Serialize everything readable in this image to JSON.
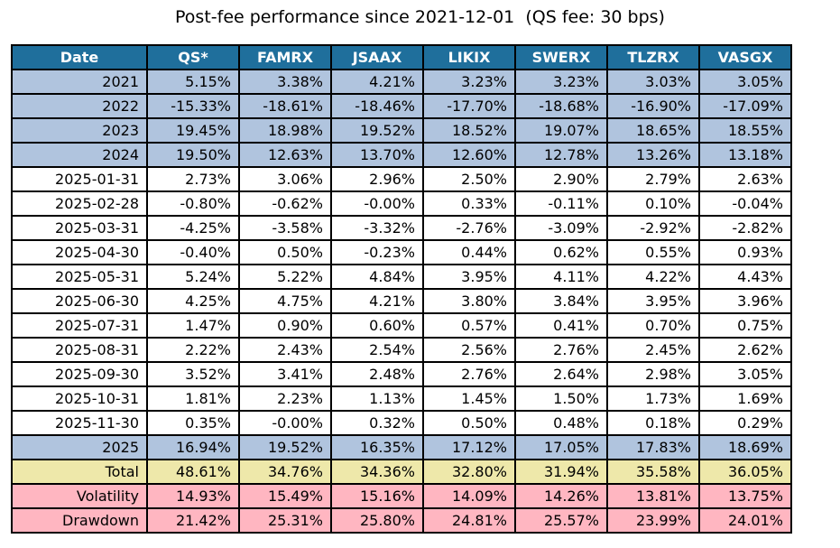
{
  "colors": {
    "header_bg": "#1F6F9C",
    "header_text": "#FFFFFF",
    "year_row_bg": "#B0C4DE",
    "month_row_bg": "#FFFFFF",
    "total_row_bg": "#EEE8AA",
    "risk_row_bg": "#FFB6C1",
    "border": "#000000",
    "text": "#000000",
    "background": "#FFFFFF"
  },
  "chart_data": {
    "type": "table",
    "title": "Post-fee performance since 2021-12-01  (QS fee: 30 bps)",
    "columns": [
      "Date",
      "QS*",
      "FAMRX",
      "JSAAX",
      "LIKIX",
      "SWERX",
      "TLZRX",
      "VASGX"
    ],
    "rows": [
      {
        "label": "2021",
        "row_type": "year",
        "values": [
          "5.15%",
          "3.38%",
          "4.21%",
          "3.23%",
          "3.23%",
          "3.03%",
          "3.05%"
        ]
      },
      {
        "label": "2022",
        "row_type": "year",
        "values": [
          "-15.33%",
          "-18.61%",
          "-18.46%",
          "-17.70%",
          "-18.68%",
          "-16.90%",
          "-17.09%"
        ]
      },
      {
        "label": "2023",
        "row_type": "year",
        "values": [
          "19.45%",
          "18.98%",
          "19.52%",
          "18.52%",
          "19.07%",
          "18.65%",
          "18.55%"
        ]
      },
      {
        "label": "2024",
        "row_type": "year",
        "values": [
          "19.50%",
          "12.63%",
          "13.70%",
          "12.60%",
          "12.78%",
          "13.26%",
          "13.18%"
        ]
      },
      {
        "label": "2025-01-31",
        "row_type": "month",
        "values": [
          "2.73%",
          "3.06%",
          "2.96%",
          "2.50%",
          "2.90%",
          "2.79%",
          "2.63%"
        ]
      },
      {
        "label": "2025-02-28",
        "row_type": "month",
        "values": [
          "-0.80%",
          "-0.62%",
          "-0.00%",
          "0.33%",
          "-0.11%",
          "0.10%",
          "-0.04%"
        ]
      },
      {
        "label": "2025-03-31",
        "row_type": "month",
        "values": [
          "-4.25%",
          "-3.58%",
          "-3.32%",
          "-2.76%",
          "-3.09%",
          "-2.92%",
          "-2.82%"
        ]
      },
      {
        "label": "2025-04-30",
        "row_type": "month",
        "values": [
          "-0.40%",
          "0.50%",
          "-0.23%",
          "0.44%",
          "0.62%",
          "0.55%",
          "0.93%"
        ]
      },
      {
        "label": "2025-05-31",
        "row_type": "month",
        "values": [
          "5.24%",
          "5.22%",
          "4.84%",
          "3.95%",
          "4.11%",
          "4.22%",
          "4.43%"
        ]
      },
      {
        "label": "2025-06-30",
        "row_type": "month",
        "values": [
          "4.25%",
          "4.75%",
          "4.21%",
          "3.80%",
          "3.84%",
          "3.95%",
          "3.96%"
        ]
      },
      {
        "label": "2025-07-31",
        "row_type": "month",
        "values": [
          "1.47%",
          "0.90%",
          "0.60%",
          "0.57%",
          "0.41%",
          "0.70%",
          "0.75%"
        ]
      },
      {
        "label": "2025-08-31",
        "row_type": "month",
        "values": [
          "2.22%",
          "2.43%",
          "2.54%",
          "2.56%",
          "2.76%",
          "2.45%",
          "2.62%"
        ]
      },
      {
        "label": "2025-09-30",
        "row_type": "month",
        "values": [
          "3.52%",
          "3.41%",
          "2.48%",
          "2.76%",
          "2.64%",
          "2.98%",
          "3.05%"
        ]
      },
      {
        "label": "2025-10-31",
        "row_type": "month",
        "values": [
          "1.81%",
          "2.23%",
          "1.13%",
          "1.45%",
          "1.50%",
          "1.73%",
          "1.69%"
        ]
      },
      {
        "label": "2025-11-30",
        "row_type": "month",
        "values": [
          "0.35%",
          "-0.00%",
          "0.32%",
          "0.50%",
          "0.48%",
          "0.18%",
          "0.29%"
        ]
      },
      {
        "label": "2025",
        "row_type": "year",
        "values": [
          "16.94%",
          "19.52%",
          "16.35%",
          "17.12%",
          "17.05%",
          "17.83%",
          "18.69%"
        ]
      },
      {
        "label": "Total",
        "row_type": "total",
        "values": [
          "48.61%",
          "34.76%",
          "34.36%",
          "32.80%",
          "31.94%",
          "35.58%",
          "36.05%"
        ]
      },
      {
        "label": "Volatility",
        "row_type": "risk",
        "values": [
          "14.93%",
          "15.49%",
          "15.16%",
          "14.09%",
          "14.26%",
          "13.81%",
          "13.75%"
        ]
      },
      {
        "label": "Drawdown",
        "row_type": "risk",
        "values": [
          "21.42%",
          "25.31%",
          "25.80%",
          "24.81%",
          "25.57%",
          "23.99%",
          "24.01%"
        ]
      }
    ]
  }
}
